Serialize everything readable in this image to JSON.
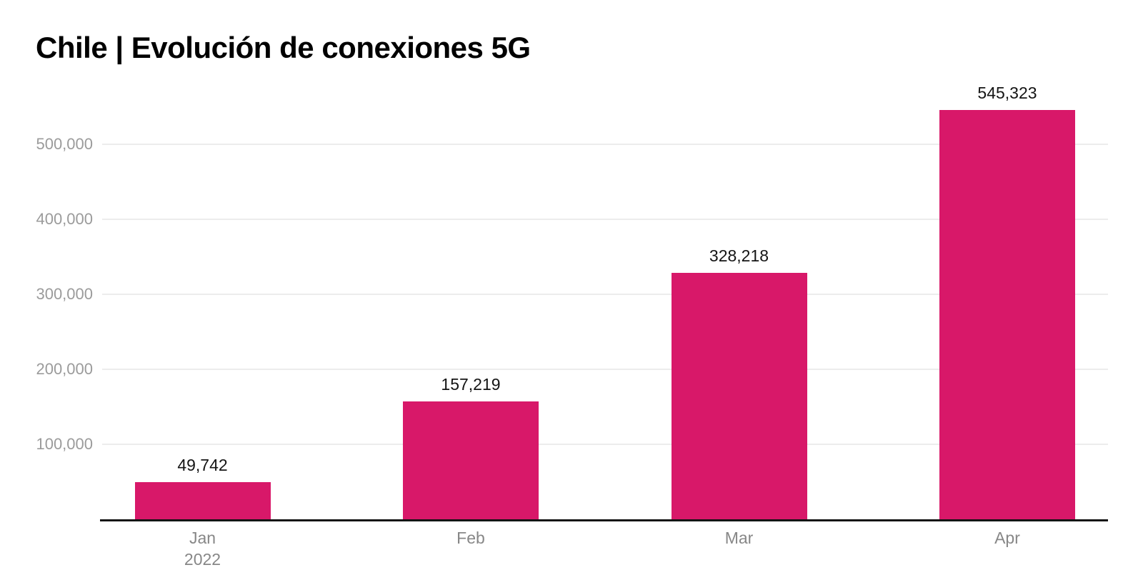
{
  "chart_data": {
    "type": "bar",
    "title": "Chile | Evolución de conexiones 5G",
    "categories": [
      "Jan",
      "Feb",
      "Mar",
      "Apr"
    ],
    "category_sublabels": [
      "2022",
      "",
      "",
      ""
    ],
    "values": [
      49742,
      157219,
      328218,
      545323
    ],
    "value_labels": [
      "49,742",
      "157,219",
      "328,218",
      "545,323"
    ],
    "y_ticks": [
      {
        "value": 100000,
        "label": "100,000"
      },
      {
        "value": 200000,
        "label": "200,000"
      },
      {
        "value": 300000,
        "label": "300,000"
      },
      {
        "value": 400000,
        "label": "400,000"
      },
      {
        "value": 500000,
        "label": "500,000"
      }
    ],
    "ylim": [
      0,
      560000
    ],
    "xlabel": "",
    "ylabel": "",
    "grid": "horizontal",
    "legend": "none",
    "colors": {
      "bar": "#D81869",
      "title": "#000000",
      "value_label": "#141414",
      "y_tick_label": "#9B9B9B",
      "x_tick_label": "#878787",
      "gridline": "#ECECEC",
      "axis_line": "#141414",
      "background": "#FFFFFF"
    }
  }
}
